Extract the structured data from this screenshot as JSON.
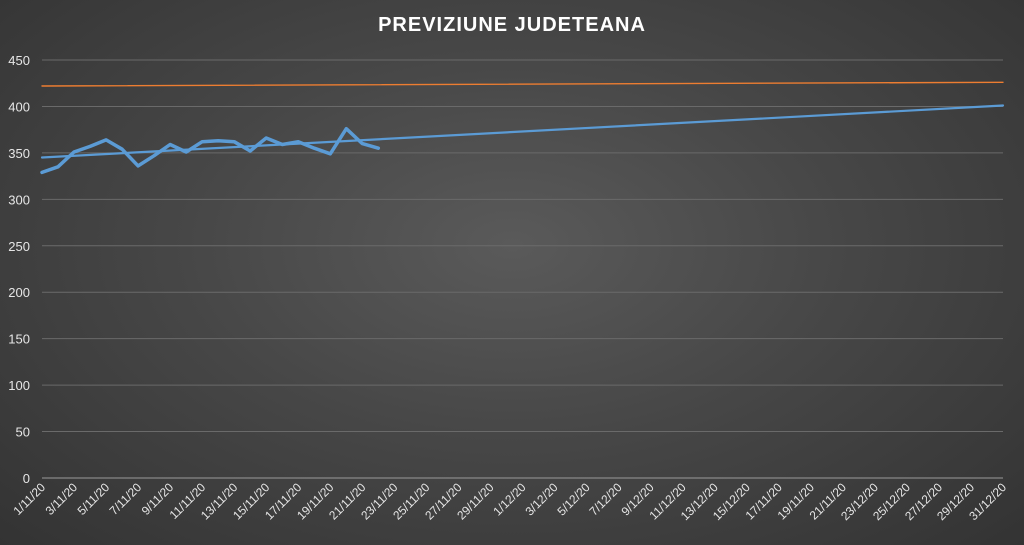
{
  "chart_data": {
    "type": "line",
    "title": "PREVIZIUNE JUDETEANA",
    "xlabel": "",
    "ylabel": "",
    "ylim": [
      0,
      450
    ],
    "yticks": [
      0,
      50,
      100,
      150,
      200,
      250,
      300,
      350,
      400,
      450
    ],
    "grid": "horizontal",
    "legend": "none",
    "x_range": [
      "2020-11-01",
      "2020-12-31"
    ],
    "x_tick_labels": [
      "1/11/20",
      "3/11/20",
      "5/11/20",
      "7/11/20",
      "9/11/20",
      "11/11/20",
      "13/11/20",
      "15/11/20",
      "17/11/20",
      "19/11/20",
      "21/11/20",
      "23/11/20",
      "25/11/20",
      "27/11/20",
      "29/11/20",
      "1/12/20",
      "3/12/20",
      "5/12/20",
      "7/12/20",
      "9/12/20",
      "11/12/20",
      "13/12/20",
      "15/12/20",
      "17/11/20",
      "19/11/20",
      "21/11/20",
      "23/12/20",
      "25/12/20",
      "27/12/20",
      "29/12/20",
      "31/12/20"
    ],
    "series": [
      {
        "color": "#5b9bd5",
        "style": "thick",
        "x": [
          "2020-11-01",
          "2020-11-02",
          "2020-11-03",
          "2020-11-04",
          "2020-11-05",
          "2020-11-06",
          "2020-11-07",
          "2020-11-08",
          "2020-11-09",
          "2020-11-10",
          "2020-11-11",
          "2020-11-12",
          "2020-11-13",
          "2020-11-14",
          "2020-11-15",
          "2020-11-16",
          "2020-11-17",
          "2020-11-18",
          "2020-11-19",
          "2020-11-20",
          "2020-11-21",
          "2020-11-22"
        ],
        "values": [
          329,
          335,
          351,
          357,
          364,
          354,
          336,
          347,
          359,
          351,
          362,
          363,
          362,
          352,
          366,
          359,
          362,
          355,
          349,
          376,
          360,
          355
        ]
      },
      {
        "color": "#5b9bd5",
        "style": "trend",
        "x": [
          "2020-11-01",
          "2020-12-31"
        ],
        "values": [
          345,
          401
        ]
      },
      {
        "color": "#ed7d31",
        "style": "thin",
        "x": [
          "2020-11-01",
          "2020-12-31"
        ],
        "values": [
          422,
          426
        ]
      }
    ]
  }
}
